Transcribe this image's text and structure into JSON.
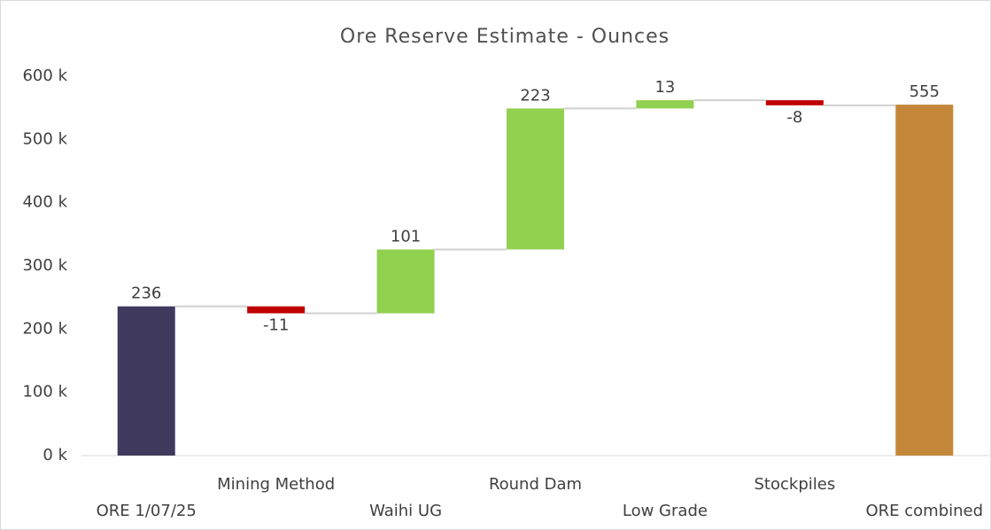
{
  "chart_data": {
    "type": "waterfall",
    "title": "Ore Reserve Estimate - Ounces",
    "categories": [
      "ORE 1/07/25",
      "Mining Method",
      "Waihi UG",
      "Round Dam",
      "Low Grade",
      "Stockpiles",
      "ORE combined"
    ],
    "values": [
      236,
      -11,
      101,
      223,
      13,
      -8,
      555
    ],
    "totals": [
      true,
      false,
      false,
      false,
      false,
      false,
      true
    ],
    "colors": [
      "#3f3a5e",
      "#c00000",
      "#92d050",
      "#92d050",
      "#92d050",
      "#c00000",
      "#c4873a"
    ],
    "ylim": [
      0,
      600
    ],
    "yticks": [
      {
        "value": 0,
        "label": "0 k"
      },
      {
        "value": 100,
        "label": "100 k"
      },
      {
        "value": 200,
        "label": "200 k"
      },
      {
        "value": 300,
        "label": "300 k"
      },
      {
        "value": 400,
        "label": "400 k"
      },
      {
        "value": 500,
        "label": "500 k"
      },
      {
        "value": 600,
        "label": "600 k"
      }
    ],
    "grid": false
  }
}
